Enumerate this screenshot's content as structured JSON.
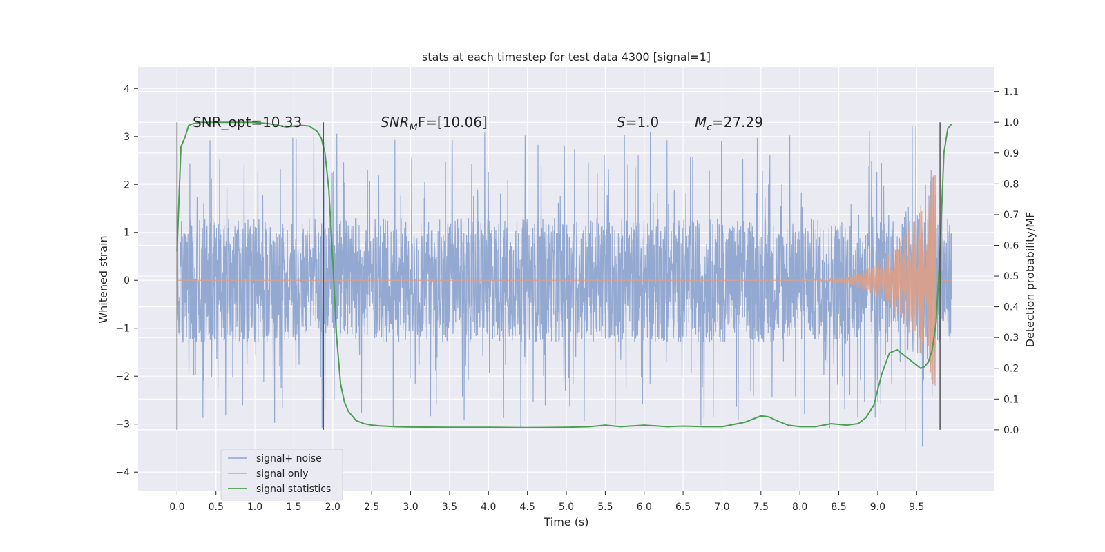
{
  "chart_data": {
    "type": "line",
    "title": "stats at each timestep for test data 4300 [signal=1]",
    "xlabel": "Time (s)",
    "ylabel": "Whitened strain",
    "ylabel_right": "Detection probability/MF",
    "xlim": [
      -0.5,
      10.5
    ],
    "ylim": [
      -4.4,
      4.45
    ],
    "ylim_right": [
      -0.2,
      1.18
    ],
    "x_ticks": [
      "0.0",
      "0.5",
      "1.0",
      "1.5",
      "2.0",
      "2.5",
      "3.0",
      "3.5",
      "4.0",
      "4.5",
      "5.0",
      "5.5",
      "6.0",
      "6.5",
      "7.0",
      "7.5",
      "8.0",
      "8.5",
      "9.0",
      "9.5"
    ],
    "y_ticks": [
      "4",
      "3",
      "2",
      "1",
      "0",
      "−1",
      "−2",
      "−3",
      "−4"
    ],
    "y_right_ticks": [
      "1.1",
      "1.0",
      "0.9",
      "0.8",
      "0.7",
      "0.6",
      "0.5",
      "0.4",
      "0.3",
      "0.2",
      "0.1",
      "0.0"
    ],
    "grid": true,
    "legend_position": "lower-left",
    "annotations": {
      "snr_opt": "SNR_opt=10.33",
      "snr_mf_prefix": "SNR",
      "snr_mf_sub": "M",
      "snr_mf_suffix": "F=[10.06]",
      "s_label": "S",
      "s_value": "=1.0",
      "mc_label": "M",
      "mc_sub": "c",
      "mc_value": "=27.29"
    },
    "vertical_markers": [
      0.0,
      1.88,
      9.8
    ],
    "series": [
      {
        "name": "signal+ noise",
        "color": "#8fa5cf",
        "description_level": "noisy strain, envelope about ±1.3 with spikes to ±3",
        "x_range": [
          0.0,
          9.95
        ]
      },
      {
        "name": "signal only",
        "color": "#dd9f86",
        "chirp": {
          "start": 7.0,
          "peak": 9.7,
          "amplitude_peak": 2.2
        }
      },
      {
        "name": "signal statistics",
        "color": "#4c9e55",
        "axis": "right",
        "x": [
          0.0,
          0.05,
          0.1,
          0.15,
          0.2,
          0.3,
          0.5,
          0.8,
          1.0,
          1.2,
          1.4,
          1.6,
          1.7,
          1.8,
          1.85,
          1.9,
          1.95,
          2.0,
          2.05,
          2.1,
          2.15,
          2.2,
          2.3,
          2.4,
          2.5,
          2.6,
          2.8,
          3.0,
          3.5,
          4.0,
          4.5,
          5.0,
          5.3,
          5.5,
          5.7,
          6.0,
          6.3,
          6.5,
          6.8,
          7.0,
          7.3,
          7.5,
          7.6,
          7.7,
          7.85,
          8.0,
          8.2,
          8.4,
          8.6,
          8.75,
          8.85,
          8.95,
          9.05,
          9.15,
          9.25,
          9.4,
          9.5,
          9.55,
          9.6,
          9.65,
          9.7,
          9.75,
          9.8,
          9.85,
          9.9,
          9.95
        ],
        "values": [
          0.58,
          0.92,
          0.95,
          0.99,
          0.995,
          1.0,
          1.0,
          1.0,
          1.0,
          0.995,
          0.985,
          0.99,
          0.988,
          0.97,
          0.95,
          0.9,
          0.78,
          0.55,
          0.3,
          0.15,
          0.09,
          0.06,
          0.03,
          0.02,
          0.015,
          0.013,
          0.01,
          0.009,
          0.008,
          0.008,
          0.007,
          0.008,
          0.01,
          0.015,
          0.01,
          0.015,
          0.01,
          0.012,
          0.01,
          0.01,
          0.025,
          0.045,
          0.042,
          0.03,
          0.015,
          0.01,
          0.01,
          0.02,
          0.015,
          0.02,
          0.04,
          0.08,
          0.18,
          0.25,
          0.26,
          0.23,
          0.21,
          0.2,
          0.205,
          0.22,
          0.26,
          0.35,
          0.58,
          0.9,
          0.98,
          0.995
        ]
      }
    ]
  }
}
